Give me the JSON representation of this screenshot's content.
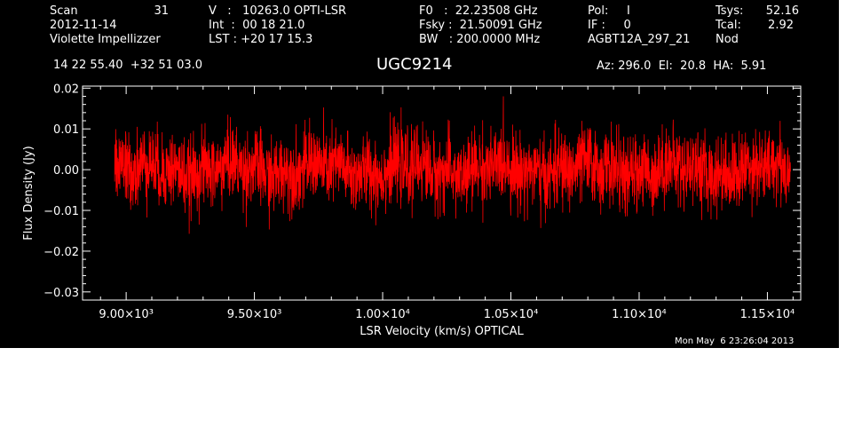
{
  "header": {
    "scan_label": "Scan",
    "scan_value": "31",
    "date": "2012-11-14",
    "observer": "Violette Impellizzer",
    "velocity": "V   :   10263.0 OPTI-LSR",
    "int_time": "Int  :  00 18 21.0",
    "lst": "LST : +20 17 15.3",
    "f0": "F0   :  22.23508 GHz",
    "fsky": "Fsky :  21.50091 GHz",
    "bw": "BW   : 200.0000 MHz",
    "pol": "Pol:     I",
    "if_num": "IF :     0",
    "project": "AGBT12A_297_21",
    "tsys_label": "Tsys:",
    "tsys_value": "52.16",
    "tcal_label": "Tcal:",
    "tcal_value": "2.92",
    "proc": "Nod",
    "coords": "14 22 55.40  +32 51 03.0",
    "source": "UGC9214",
    "az_el_ha": "Az: 296.0  El:  20.8  HA:  5.91",
    "timestamp": "Mon May  6 23:26:04 2013"
  },
  "chart_data": {
    "type": "line",
    "title": "UGC9214",
    "xlabel": "LSR Velocity (km/s) OPTICAL",
    "ylabel": "Flux Density (Jy)",
    "xlim": [
      8830,
      11630
    ],
    "ylim": [
      -0.032,
      0.0205
    ],
    "x_range": [
      8955,
      11590
    ],
    "baseline": 0.0,
    "noise_rms": 0.0045,
    "x_ticks": [
      {
        "value": 9000,
        "label": "9.00×10³"
      },
      {
        "value": 9500,
        "label": "9.50×10³"
      },
      {
        "value": 10000,
        "label": "1.00×10⁴"
      },
      {
        "value": 10500,
        "label": "1.05×10⁴"
      },
      {
        "value": 11000,
        "label": "1.10×10⁴"
      },
      {
        "value": 11500,
        "label": "1.15×10⁴"
      }
    ],
    "y_ticks": [
      {
        "value": 0.02,
        "label": "0.02"
      },
      {
        "value": 0.01,
        "label": "0.01"
      },
      {
        "value": 0.0,
        "label": "0.00"
      },
      {
        "value": -0.01,
        "label": "−0.01"
      },
      {
        "value": -0.02,
        "label": "−0.02"
      },
      {
        "value": -0.03,
        "label": "−0.03"
      }
    ],
    "series": [
      {
        "color": "#ff0000"
      }
    ],
    "grid": false,
    "legend": "none"
  }
}
